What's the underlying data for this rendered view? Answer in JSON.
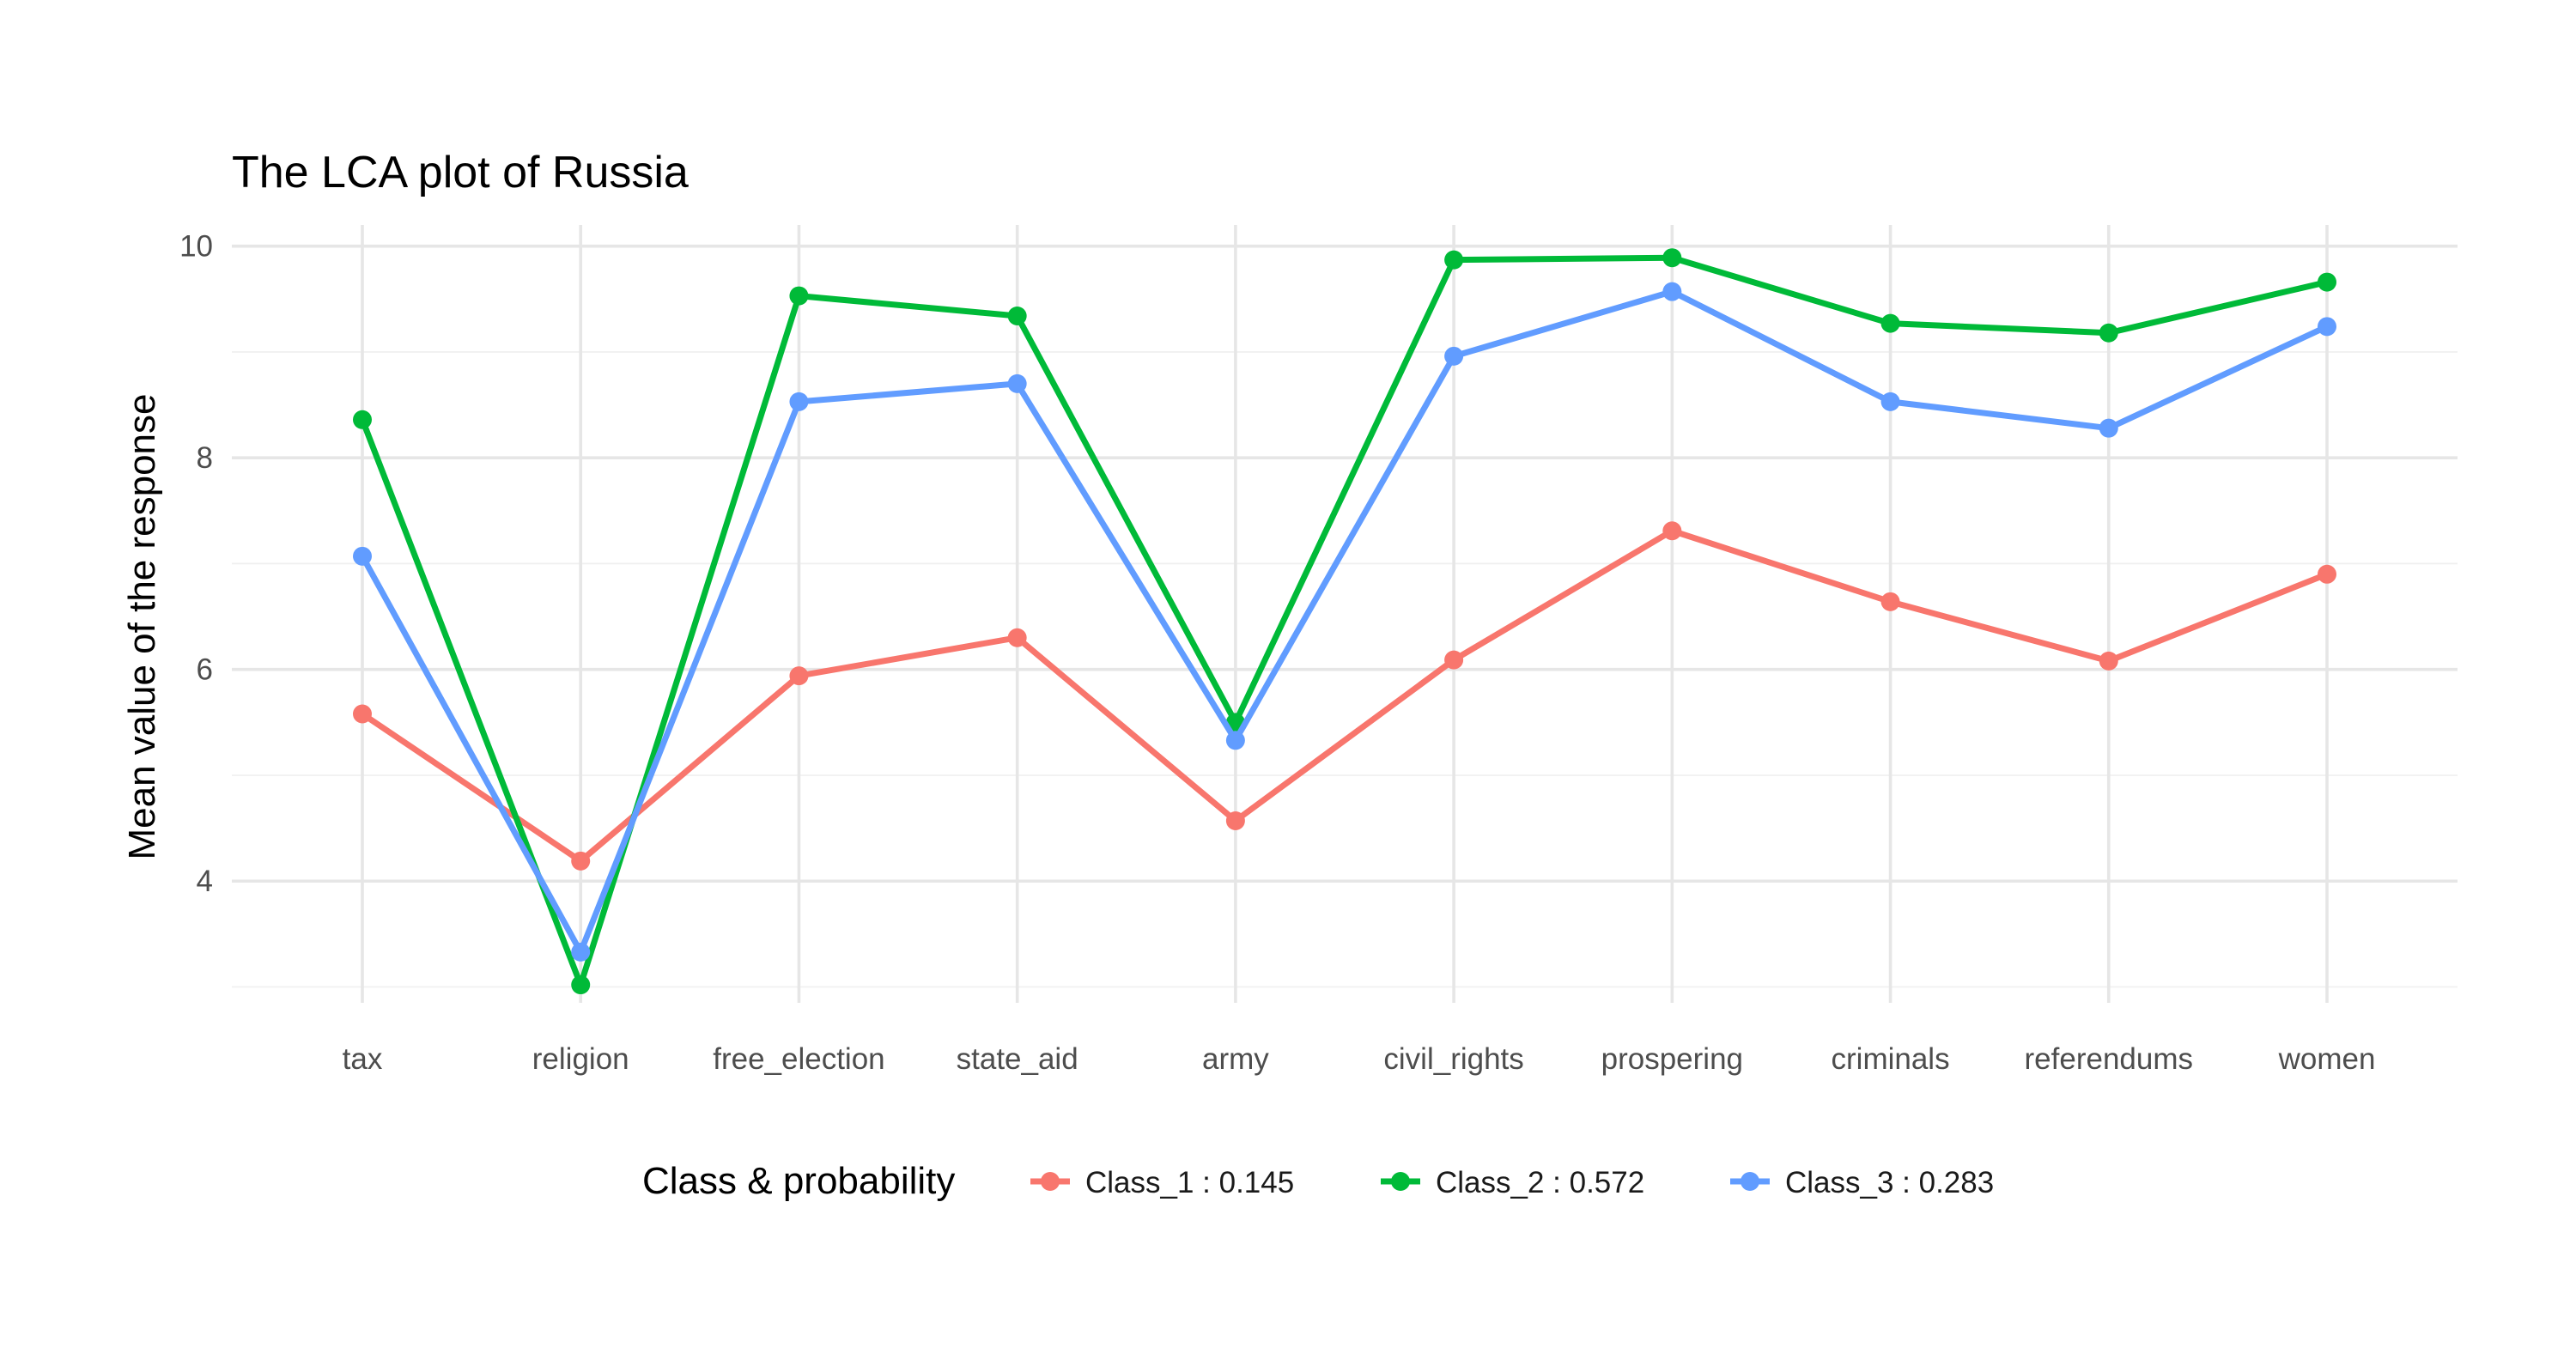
{
  "chart_data": {
    "type": "line",
    "title": "The LCA plot of Russia",
    "xlabel": "",
    "ylabel": "Mean value of the response",
    "categories": [
      "tax",
      "religion",
      "free_election",
      "state_aid",
      "army",
      "civil_rights",
      "prospering",
      "criminals",
      "referendums",
      "women"
    ],
    "ylim": [
      2.85,
      10.2
    ],
    "yticks": [
      4,
      6,
      8,
      10
    ],
    "grid": true,
    "legend": {
      "title": "Class & probability",
      "position": "bottom"
    },
    "series": [
      {
        "name": "Class_1 : 0.145",
        "color": "#F8766D",
        "values": [
          5.58,
          4.19,
          5.94,
          6.3,
          4.57,
          6.09,
          7.31,
          6.64,
          6.08,
          6.9
        ]
      },
      {
        "name": "Class_2 : 0.572",
        "color": "#00BA38",
        "values": [
          8.36,
          3.02,
          9.53,
          9.34,
          5.5,
          9.87,
          9.89,
          9.27,
          9.18,
          9.66
        ]
      },
      {
        "name": "Class_3 : 0.283",
        "color": "#619CFF",
        "values": [
          7.07,
          3.33,
          8.53,
          8.7,
          5.33,
          8.96,
          9.57,
          8.53,
          8.28,
          9.24
        ]
      }
    ]
  }
}
